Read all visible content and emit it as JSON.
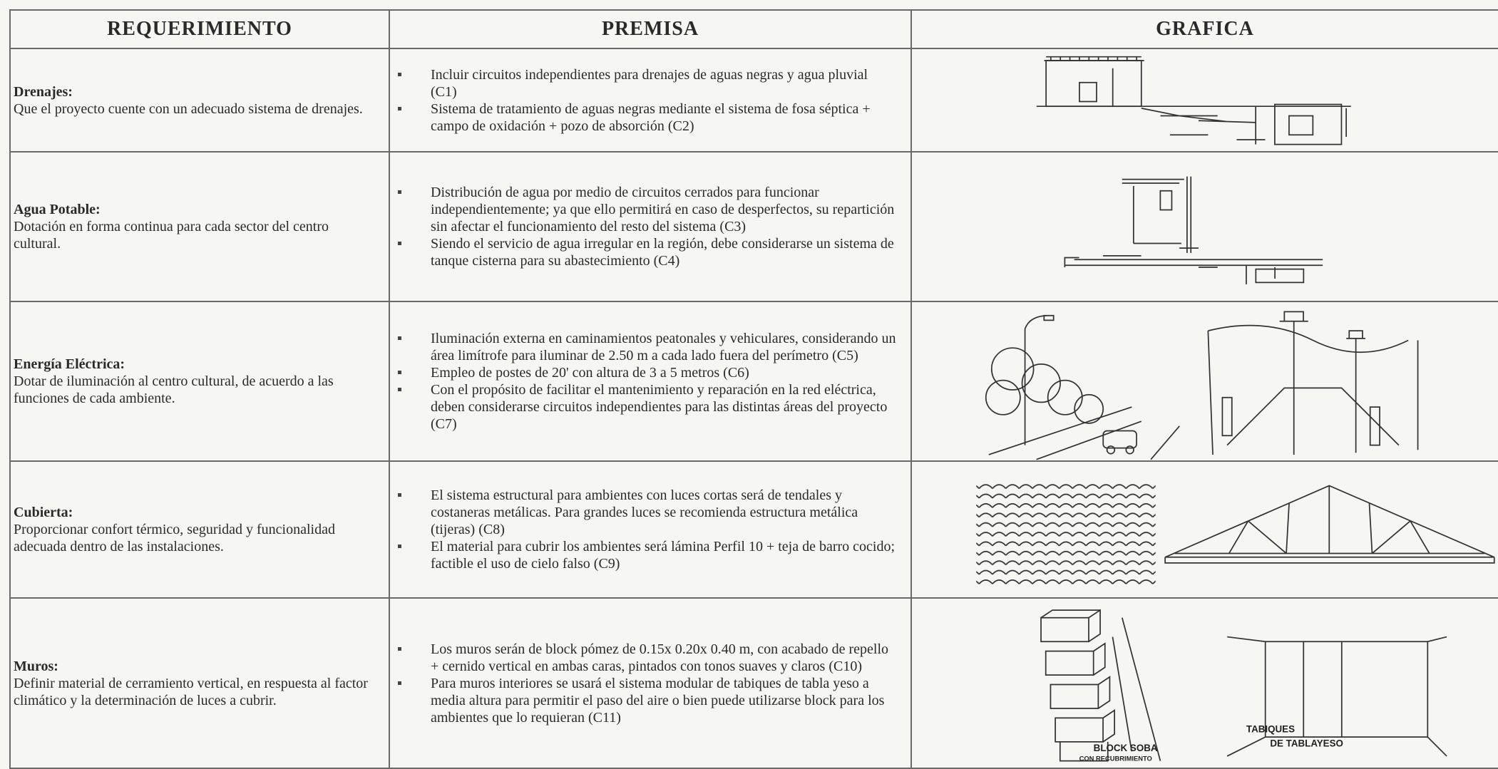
{
  "table": {
    "header": [
      "REQUERIMIENTO",
      "PREMISA",
      "GRAFICA"
    ],
    "rows": [
      {
        "title": "Drenajes:",
        "description": "Que el proyecto cuente con un adecuado sistema de drenajes.",
        "premises": [
          "Incluir circuitos independientes para drenajes de aguas negras y agua pluvial (C1)",
          "Sistema de tratamiento de aguas negras mediante el sistema de fosa séptica + campo de oxidación + pozo de absorción (C2)"
        ]
      },
      {
        "title": "Agua Potable:",
        "description": "Dotación en forma continua para cada sector del centro cultural.",
        "premises": [
          "Distribución de agua por medio de circuitos cerrados para funcionar independientemente; ya que ello permitirá en caso de desperfectos, su repartición sin afectar el funcionamiento del resto del sistema (C3)",
          "Siendo el servicio de agua irregular en la región, debe considerarse un sistema de tanque cisterna para su abastecimiento (C4)"
        ]
      },
      {
        "title": "Energía Eléctrica:",
        "description": "Dotar de iluminación al centro cultural, de acuerdo a las funciones de cada ambiente.",
        "premises": [
          "Iluminación externa en caminamientos peatonales y vehiculares, considerando un área limítrofe para iluminar de 2.50 m a cada lado fuera del perímetro (C5)",
          "Empleo de postes de 20' con altura de 3 a 5 metros (C6)",
          "Con el propósito de facilitar el mantenimiento y reparación en la red eléctrica, deben considerarse circuitos independientes para las distintas áreas del proyecto (C7)"
        ]
      },
      {
        "title": "Cubierta:",
        "description": "Proporcionar confort térmico, seguridad y funcionalidad adecuada dentro de las instalaciones.",
        "premises": [
          "El sistema estructural para ambientes con luces cortas será de tendales y costaneras metálicas. Para grandes luces se recomienda estructura metálica (tijeras) (C8)",
          "El material para cubrir los ambientes será lámina Perfil 10 + teja de barro cocido;  factible el uso de cielo falso (C9)"
        ]
      },
      {
        "title": "Muros:",
        "description": "Definir material de cerramiento vertical, en respuesta al factor climático y la determinación de luces a cubrir.",
        "premises": [
          "Los muros serán de block pómez de 0.15x 0.20x 0.40 m, con acabado de repello + cernido vertical en ambas caras, pintados con tonos suaves y claros (C10)",
          "Para muros interiores se usará el sistema modular de tabiques de tabla yeso a media altura para permitir el paso del aire o bien puede utilizarse block para los ambientes que lo requieran (C11)"
        ],
        "graphic_labels": [
          "BLOCK SOBA",
          "CON RECUBRIMIENTO",
          "TABIQUES",
          "DE TABLAYESO"
        ]
      }
    ]
  }
}
